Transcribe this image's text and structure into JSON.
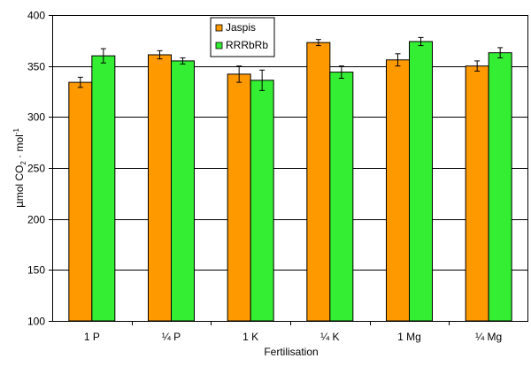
{
  "chart_data": {
    "type": "bar",
    "categories": [
      "1 P",
      "¼ P",
      "1 K",
      "¼ K",
      "1 Mg",
      "¼ Mg"
    ],
    "series": [
      {
        "name": "Jaspis",
        "color": "#ff9900",
        "values": [
          334,
          361,
          342,
          373,
          356,
          350
        ],
        "errors": [
          5,
          4,
          8,
          3,
          6,
          5
        ]
      },
      {
        "name": "RRRbRb",
        "color": "#33ee33",
        "values": [
          360,
          355,
          336,
          344,
          374,
          363
        ],
        "errors": [
          7,
          3,
          10,
          6,
          4,
          5
        ]
      }
    ],
    "xlabel": "Fertilisation",
    "ylabel": "µmol CO₂ · mol⁻¹",
    "ylabel_parts": {
      "mu": "µ",
      "main": "mol CO",
      "sub": "2",
      "mid": " · mol",
      "sup": "-1"
    },
    "ylim": [
      100,
      400
    ],
    "yticks": [
      "100",
      "150",
      "200",
      "250",
      "300",
      "350",
      "400"
    ],
    "grid": true,
    "legend_position": "top-center"
  }
}
